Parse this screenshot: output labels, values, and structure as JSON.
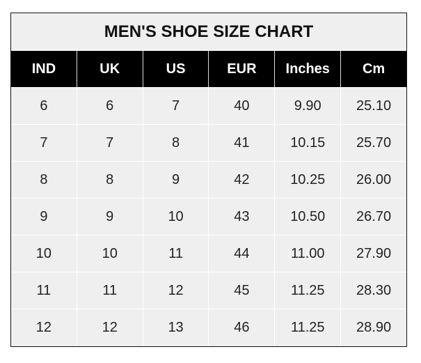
{
  "chart_data": {
    "type": "table",
    "title": "MEN'S SHOE SIZE CHART",
    "columns": [
      "IND",
      "UK",
      "US",
      "EUR",
      "Inches",
      "Cm"
    ],
    "rows": [
      [
        "6",
        "6",
        "7",
        "40",
        "9.90",
        "25.10"
      ],
      [
        "7",
        "7",
        "8",
        "41",
        "10.15",
        "25.70"
      ],
      [
        "8",
        "8",
        "9",
        "42",
        "10.25",
        "26.00"
      ],
      [
        "9",
        "9",
        "10",
        "43",
        "10.50",
        "26.70"
      ],
      [
        "10",
        "10",
        "11",
        "44",
        "11.00",
        "27.90"
      ],
      [
        "11",
        "11",
        "12",
        "45",
        "11.25",
        "28.30"
      ],
      [
        "12",
        "12",
        "13",
        "46",
        "11.25",
        "28.90"
      ]
    ],
    "colors": {
      "header_bg": "#000000",
      "header_text": "#ffffff",
      "cell_bg": "#efefef",
      "grid": "#ffffff"
    }
  }
}
